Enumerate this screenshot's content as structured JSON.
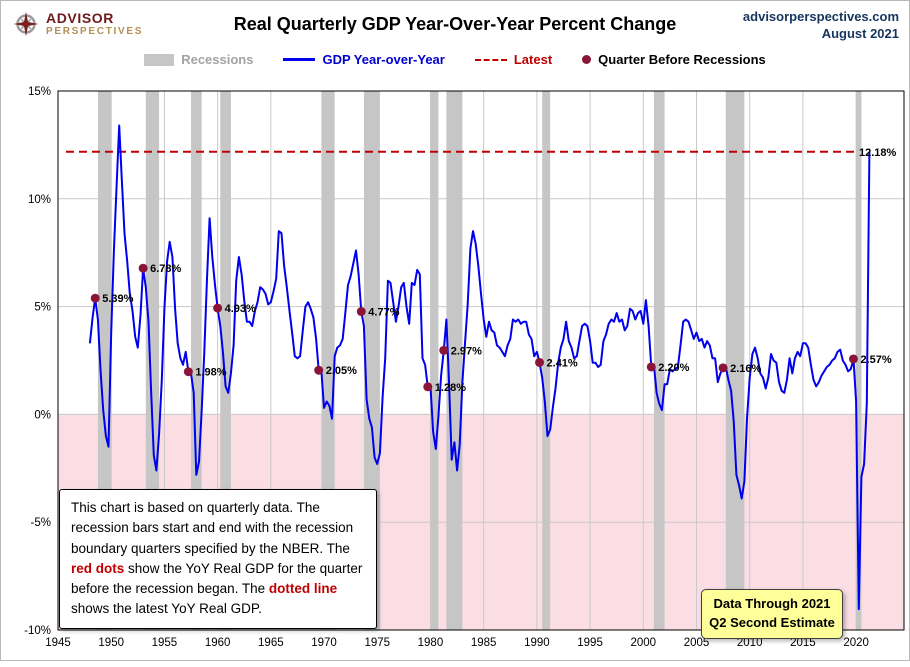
{
  "header": {
    "logo_line1": "ADVISOR",
    "logo_line2": "PERSPECTIVES",
    "title": "Real Quarterly GDP Year-Over-Year Percent Change",
    "site": "advisorperspectives.com",
    "date": "August 2021"
  },
  "legend": {
    "recessions": "Recessions",
    "gdp": "GDP Year-over-Year",
    "latest": "Latest",
    "dot": "Quarter Before Recessions"
  },
  "note": {
    "part1": "This chart is based on quarterly data. The recession bars start and end with the recession boundary quarters specified by the  NBER. The ",
    "highlight1": "red dots",
    "part2": " show the YoY Real GDP for the quarter before the recession began. The ",
    "highlight2": "dotted line",
    "part3": "  shows the latest YoY Real GDP."
  },
  "data_box": {
    "line1": "Data Through 2021",
    "line2": "Q2 Second Estimate"
  },
  "chart_data": {
    "type": "line",
    "title": "Real Quarterly GDP Year-Over-Year Percent Change",
    "xlabel": "",
    "ylabel": "",
    "xlim": [
      1945,
      2024.5
    ],
    "ylim": [
      -10,
      15
    ],
    "grid": true,
    "x_ticks": [
      {
        "v": 1945,
        "label": "1945"
      },
      {
        "v": 1950,
        "label": "1950"
      },
      {
        "v": 1955,
        "label": "1955"
      },
      {
        "v": 1960,
        "label": "1960"
      },
      {
        "v": 1965,
        "label": "1965"
      },
      {
        "v": 1970,
        "label": "1970"
      },
      {
        "v": 1975,
        "label": "1975"
      },
      {
        "v": 1980,
        "label": "1980"
      },
      {
        "v": 1985,
        "label": "1985"
      },
      {
        "v": 1990,
        "label": "1990"
      },
      {
        "v": 1995,
        "label": "1995"
      },
      {
        "v": 2000,
        "label": "2000"
      },
      {
        "v": 2005,
        "label": "2005"
      },
      {
        "v": 2010,
        "label": "2010"
      },
      {
        "v": 2015,
        "label": "2015"
      },
      {
        "v": 2020,
        "label": "2020"
      }
    ],
    "y_ticks": [
      {
        "v": 15,
        "label": "15%"
      },
      {
        "v": 10,
        "label": "10%"
      },
      {
        "v": 5,
        "label": "5%"
      },
      {
        "v": 0,
        "label": "0%"
      },
      {
        "v": -5,
        "label": "-5%"
      },
      {
        "v": -10,
        "label": "-10%"
      }
    ],
    "x_start": 1948.0,
    "x_step": 0.25,
    "values": [
      3.3,
      4.5,
      5.39,
      4.4,
      2.0,
      0.2,
      -1.0,
      -1.5,
      3.8,
      7.6,
      10.5,
      13.4,
      10.9,
      8.4,
      7.1,
      5.6,
      4.8,
      3.6,
      3.1,
      4.6,
      6.78,
      5.9,
      4.3,
      1.1,
      -1.9,
      -2.6,
      -0.9,
      1.6,
      4.9,
      7.1,
      8.0,
      7.3,
      4.9,
      3.3,
      2.6,
      2.3,
      2.9,
      1.98,
      1.9,
      1.0,
      -2.8,
      -2.2,
      0.2,
      2.9,
      6.3,
      9.1,
      7.3,
      6.0,
      4.93,
      4.1,
      2.9,
      1.3,
      1.0,
      1.9,
      3.2,
      6.2,
      7.3,
      6.5,
      5.3,
      4.3,
      4.3,
      4.1,
      4.8,
      5.2,
      5.9,
      5.8,
      5.6,
      5.1,
      5.2,
      5.7,
      6.3,
      8.5,
      8.4,
      6.9,
      5.9,
      4.8,
      3.8,
      2.7,
      2.6,
      2.7,
      3.9,
      5.0,
      5.2,
      4.9,
      4.5,
      3.5,
      2.05,
      2.0,
      0.3,
      0.6,
      0.4,
      -0.2,
      2.7,
      3.1,
      3.2,
      3.5,
      4.7,
      6.0,
      6.4,
      7.0,
      7.6,
      6.5,
      4.77,
      4.1,
      0.7,
      -0.2,
      -0.6,
      -2.0,
      -2.3,
      -1.8,
      0.8,
      2.6,
      6.2,
      6.1,
      5.2,
      4.3,
      5.0,
      5.9,
      6.1,
      5.0,
      4.2,
      6.1,
      6.0,
      6.7,
      6.5,
      2.6,
      2.3,
      1.28,
      1.3,
      -0.8,
      -1.6,
      -0.1,
      1.8,
      2.97,
      4.4,
      1.4,
      -2.1,
      -1.3,
      -2.6,
      -1.4,
      1.5,
      3.3,
      5.1,
      7.7,
      8.5,
      7.9,
      6.9,
      5.6,
      4.4,
      3.6,
      4.3,
      3.9,
      3.8,
      3.2,
      3.1,
      2.9,
      2.7,
      3.2,
      3.5,
      4.4,
      4.3,
      4.4,
      4.2,
      4.3,
      4.3,
      3.7,
      3.5,
      2.7,
      2.9,
      2.41,
      1.7,
      0.6,
      -1.0,
      -0.7,
      0.3,
      1.2,
      2.4,
      3.1,
      3.5,
      4.3,
      3.4,
      3.1,
      2.6,
      2.7,
      3.4,
      4.1,
      4.2,
      4.1,
      3.4,
      2.4,
      2.4,
      2.2,
      2.3,
      3.4,
      3.7,
      4.2,
      4.4,
      4.3,
      4.7,
      4.3,
      4.4,
      3.9,
      4.1,
      4.9,
      4.8,
      4.4,
      4.7,
      4.8,
      4.2,
      5.3,
      4.1,
      2.2,
      2.3,
      1.0,
      0.5,
      0.2,
      1.4,
      1.4,
      2.1,
      2.0,
      2.1,
      2.2,
      3.2,
      4.3,
      4.4,
      4.3,
      3.9,
      3.5,
      3.8,
      3.4,
      3.5,
      3.1,
      3.4,
      3.2,
      2.6,
      2.6,
      1.5,
      1.9,
      2.16,
      2.2,
      1.6,
      1.1,
      -0.3,
      -2.8,
      -3.3,
      -3.9,
      -3.1,
      -0.2,
      1.7,
      2.8,
      3.1,
      2.6,
      1.9,
      1.7,
      1.2,
      1.7,
      2.8,
      2.5,
      2.4,
      1.5,
      1.1,
      1.0,
      1.6,
      2.6,
      1.9,
      2.6,
      2.9,
      2.7,
      3.3,
      3.3,
      3.1,
      2.3,
      1.6,
      1.3,
      1.5,
      1.8,
      2.0,
      2.2,
      2.3,
      2.5,
      2.6,
      2.9,
      3.0,
      2.5,
      2.3,
      2.0,
      2.1,
      2.57,
      0.6,
      -9.03,
      -2.9,
      -2.3,
      0.5,
      12.18
    ],
    "recessions": [
      [
        1948.75,
        1949.75
      ],
      [
        1953.25,
        1954.25
      ],
      [
        1957.5,
        1958.25
      ],
      [
        1960.25,
        1961.0
      ],
      [
        1969.75,
        1970.75
      ],
      [
        1973.75,
        1975.0
      ],
      [
        1980.0,
        1980.5
      ],
      [
        1981.5,
        1982.75
      ],
      [
        1990.5,
        1991.0
      ],
      [
        2001.0,
        2001.75
      ],
      [
        2007.75,
        2009.25
      ],
      [
        2020.0,
        2020.25
      ]
    ],
    "dots": [
      {
        "x": 1948.5,
        "y": 5.39,
        "label": "5.39%"
      },
      {
        "x": 1953.0,
        "y": 6.78,
        "label": "6.78%"
      },
      {
        "x": 1957.25,
        "y": 1.98,
        "label": "1.98%"
      },
      {
        "x": 1960.0,
        "y": 4.93,
        "label": "4.93%"
      },
      {
        "x": 1969.5,
        "y": 2.05,
        "label": "2.05%"
      },
      {
        "x": 1973.5,
        "y": 4.77,
        "label": "4.77%"
      },
      {
        "x": 1979.75,
        "y": 1.28,
        "label": "1.28%"
      },
      {
        "x": 1981.25,
        "y": 2.97,
        "label": "2.97%"
      },
      {
        "x": 1990.25,
        "y": 2.41,
        "label": "2.41%"
      },
      {
        "x": 2000.75,
        "y": 2.2,
        "label": "2.20%"
      },
      {
        "x": 2007.5,
        "y": 2.16,
        "label": "2.16%"
      },
      {
        "x": 2019.75,
        "y": 2.57,
        "label": "2.57%"
      }
    ],
    "latest": {
      "value": 12.18,
      "label": "12.18%"
    },
    "legend_position": "top",
    "colors": {
      "line": "#0000ee",
      "latest": "#c00000",
      "dot": "#8b1538",
      "recession": "#c6c6c6",
      "below_zero": "#fadee4",
      "grid": "#c9c9c9",
      "accent_navy": "#17365d",
      "logo_red": "#6d1a1a",
      "logo_gold": "#b29054",
      "databox_bg": "#ffff99"
    }
  }
}
